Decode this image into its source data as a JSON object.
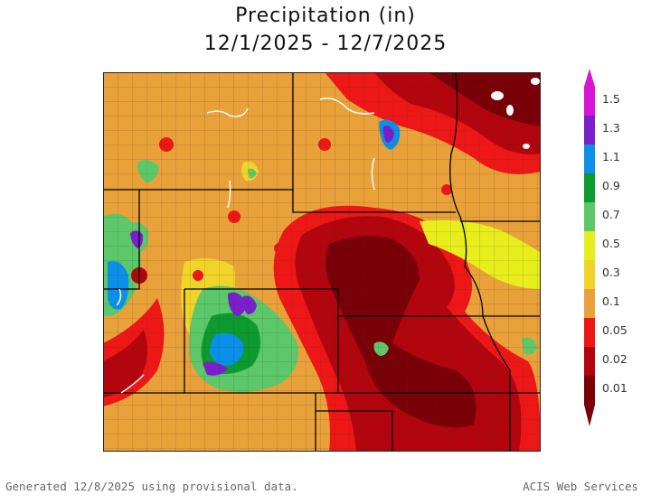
{
  "title": {
    "line1": "Precipitation (in)",
    "line2": "12/1/2025 - 12/7/2025"
  },
  "legend": {
    "ticks": [
      {
        "label": "1.5",
        "color": "#d814d8"
      },
      {
        "label": "1.3",
        "color": "#7a1fc9"
      },
      {
        "label": "1.1",
        "color": "#0b8fe8"
      },
      {
        "label": "0.9",
        "color": "#0d9a2e"
      },
      {
        "label": "0.7",
        "color": "#5cc86a"
      },
      {
        "label": "0.5",
        "color": "#e7ee1c"
      },
      {
        "label": "0.3",
        "color": "#f0d42a"
      },
      {
        "label": "0.1",
        "color": "#e9a13a"
      },
      {
        "label": "0.05",
        "color": "#ee1717"
      },
      {
        "label": "0.02",
        "color": "#b3050d"
      },
      {
        "label": "0.01",
        "color": "#7a0008"
      }
    ]
  },
  "footer": {
    "left": "Generated 12/8/2025 using provisional data.",
    "right": "ACIS Web Services"
  }
}
